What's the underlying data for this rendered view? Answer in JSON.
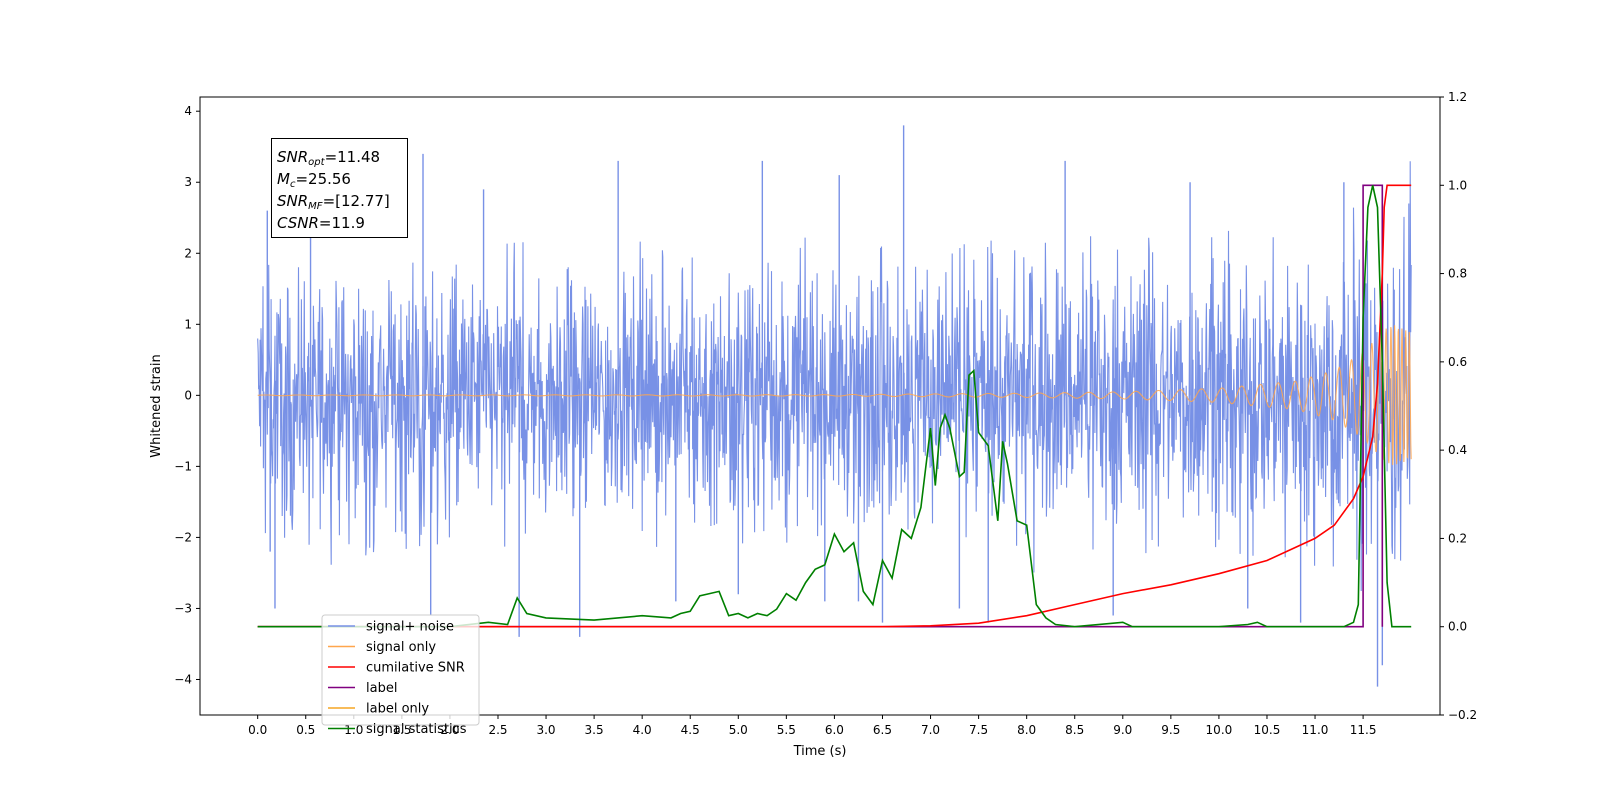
{
  "chart_data": {
    "type": "line",
    "xlabel": "Time (s)",
    "ylabel": "Whitened strain",
    "xlim": [
      -0.6,
      12.3
    ],
    "ylim": [
      -4.5,
      4.2
    ],
    "y2lim": [
      -0.2,
      1.2
    ],
    "grid": false,
    "legend_position": "lower-left",
    "x_ticks": [
      0.0,
      0.5,
      1.0,
      1.5,
      2.0,
      2.5,
      3.0,
      3.5,
      4.0,
      4.5,
      5.0,
      5.5,
      6.0,
      6.5,
      7.0,
      7.5,
      8.0,
      8.5,
      9.0,
      9.5,
      10.0,
      10.5,
      11.0,
      11.5
    ],
    "x_tick_labels": [
      "0.0",
      "0.5",
      "1.0",
      "1.5",
      "2.0",
      "2.5",
      "3.0",
      "3.5",
      "4.0",
      "4.5",
      "5.0",
      "5.5",
      "6.0",
      "6.5",
      "7.0",
      "7.5",
      "8.0",
      "8.5",
      "9.0",
      "9.5",
      "10.0",
      "10.5",
      "11.0",
      "11.5"
    ],
    "y_ticks": [
      -4,
      -3,
      -2,
      -1,
      0,
      1,
      2,
      3,
      4
    ],
    "y_tick_labels": [
      "−4",
      "−3",
      "−2",
      "−1",
      "0",
      "1",
      "2",
      "3",
      "4"
    ],
    "y2_ticks": [
      -0.2,
      0.0,
      0.2,
      0.4,
      0.6,
      0.8,
      1.0,
      1.2
    ],
    "y2_tick_labels": [
      "−0.2",
      "0.0",
      "0.2",
      "0.4",
      "0.6",
      "0.8",
      "1.0",
      "1.2"
    ],
    "series": [
      {
        "name": "signal+ noise",
        "axis": "left",
        "color": "#7891e6",
        "x_range": [
          0.0,
          12.0
        ],
        "values_envelope_upper": [
          1.6,
          1.5,
          1.5,
          1.6,
          1.5,
          1.6,
          1.5,
          1.6,
          1.5,
          1.6,
          1.5,
          1.6,
          1.5,
          1.6,
          1.5,
          1.6,
          1.6,
          1.6,
          1.6,
          1.7,
          1.7,
          1.8,
          1.9,
          2.0,
          2.4
        ],
        "values_envelope_lower": [
          -1.6,
          -1.5,
          -1.6,
          -1.5,
          -1.6,
          -1.5,
          -1.6,
          -1.5,
          -1.6,
          -1.5,
          -1.6,
          -1.5,
          -1.6,
          -1.5,
          -1.6,
          -1.5,
          -1.6,
          -1.6,
          -1.6,
          -1.7,
          -1.7,
          -1.8,
          -1.9,
          -2.0,
          -2.4
        ],
        "spikes": [
          {
            "x": 0.1,
            "y": 2.6
          },
          {
            "x": 0.13,
            "y": -2.2
          },
          {
            "x": 0.18,
            "y": -3.0
          },
          {
            "x": 0.55,
            "y": 2.3
          },
          {
            "x": 1.72,
            "y": 3.4
          },
          {
            "x": 1.8,
            "y": -3.1
          },
          {
            "x": 2.35,
            "y": 2.9
          },
          {
            "x": 2.72,
            "y": -3.4
          },
          {
            "x": 3.35,
            "y": -3.4
          },
          {
            "x": 3.75,
            "y": 3.3
          },
          {
            "x": 4.35,
            "y": -2.9
          },
          {
            "x": 5.0,
            "y": -2.8
          },
          {
            "x": 5.25,
            "y": 3.3
          },
          {
            "x": 5.9,
            "y": -2.9
          },
          {
            "x": 6.05,
            "y": 3.1
          },
          {
            "x": 6.25,
            "y": -2.9
          },
          {
            "x": 6.5,
            "y": -3.2
          },
          {
            "x": 6.72,
            "y": 3.8
          },
          {
            "x": 7.3,
            "y": -3.0
          },
          {
            "x": 7.6,
            "y": -3.2
          },
          {
            "x": 8.4,
            "y": 3.3
          },
          {
            "x": 8.9,
            "y": -3.1
          },
          {
            "x": 9.7,
            "y": 3.0
          },
          {
            "x": 10.3,
            "y": -3.0
          },
          {
            "x": 10.85,
            "y": -3.2
          },
          {
            "x": 11.3,
            "y": 3.0
          },
          {
            "x": 11.65,
            "y": -4.1
          },
          {
            "x": 11.7,
            "y": -3.8
          },
          {
            "x": 11.7,
            "y": 2.9
          }
        ]
      },
      {
        "name": "signal only",
        "axis": "left",
        "color": "#ffa64d",
        "x_range": [
          0.0,
          12.0
        ],
        "amplitude_points": [
          [
            0.0,
            0.005
          ],
          [
            6.0,
            0.01
          ],
          [
            8.0,
            0.03
          ],
          [
            9.0,
            0.05
          ],
          [
            10.0,
            0.1
          ],
          [
            10.8,
            0.2
          ],
          [
            11.2,
            0.35
          ],
          [
            11.5,
            0.6
          ],
          [
            11.7,
            0.9
          ],
          [
            11.8,
            1.0
          ],
          [
            12.0,
            0.9
          ]
        ]
      },
      {
        "name": "cumilative SNR",
        "axis": "right",
        "color": "#ff0000",
        "x": [
          0.0,
          5.0,
          6.0,
          6.5,
          7.0,
          7.5,
          8.0,
          8.5,
          9.0,
          9.5,
          10.0,
          10.5,
          11.0,
          11.2,
          11.4,
          11.5,
          11.6,
          11.65,
          11.7,
          11.72,
          11.75,
          12.0
        ],
        "values": [
          0.0,
          0.0,
          0.0,
          0.0,
          0.002,
          0.008,
          0.025,
          0.05,
          0.075,
          0.095,
          0.12,
          0.15,
          0.2,
          0.23,
          0.29,
          0.34,
          0.43,
          0.55,
          0.8,
          0.95,
          1.0,
          1.0
        ]
      },
      {
        "name": "label",
        "axis": "right",
        "color": "#800080",
        "x": [
          0.0,
          11.5,
          11.5,
          11.7,
          11.7
        ],
        "values": [
          0.0,
          0.0,
          1.0,
          1.0,
          0.0
        ]
      },
      {
        "name": "label only",
        "axis": "right",
        "color": "#f5a623",
        "x": [],
        "values": []
      },
      {
        "name": "signal statistics",
        "axis": "right",
        "color": "#008000",
        "x": [
          0.0,
          2.0,
          2.4,
          2.6,
          2.7,
          2.8,
          3.0,
          3.5,
          4.0,
          4.3,
          4.4,
          4.5,
          4.6,
          4.7,
          4.8,
          4.9,
          5.0,
          5.1,
          5.2,
          5.3,
          5.4,
          5.5,
          5.6,
          5.7,
          5.8,
          5.9,
          6.0,
          6.1,
          6.2,
          6.3,
          6.4,
          6.5,
          6.6,
          6.7,
          6.8,
          6.9,
          7.0,
          7.05,
          7.1,
          7.15,
          7.2,
          7.3,
          7.35,
          7.4,
          7.45,
          7.5,
          7.6,
          7.7,
          7.75,
          7.8,
          7.9,
          8.0,
          8.1,
          8.2,
          8.3,
          8.5,
          9.0,
          9.1,
          9.2,
          10.0,
          10.3,
          10.4,
          10.5,
          11.0,
          11.3,
          11.4,
          11.45,
          11.5,
          11.55,
          11.6,
          11.65,
          11.7,
          11.75,
          11.8,
          12.0
        ],
        "values": [
          0.0,
          0.0,
          0.01,
          0.005,
          0.065,
          0.03,
          0.02,
          0.015,
          0.025,
          0.02,
          0.03,
          0.035,
          0.07,
          0.075,
          0.08,
          0.025,
          0.03,
          0.02,
          0.03,
          0.025,
          0.04,
          0.075,
          0.06,
          0.1,
          0.13,
          0.14,
          0.21,
          0.17,
          0.19,
          0.08,
          0.05,
          0.15,
          0.11,
          0.22,
          0.2,
          0.27,
          0.45,
          0.32,
          0.45,
          0.48,
          0.45,
          0.34,
          0.35,
          0.57,
          0.58,
          0.44,
          0.41,
          0.24,
          0.42,
          0.37,
          0.24,
          0.23,
          0.05,
          0.02,
          0.005,
          0.0,
          0.01,
          0.0,
          0.0,
          0.0,
          0.005,
          0.01,
          0.0,
          0.0,
          0.0,
          0.01,
          0.05,
          0.7,
          0.95,
          1.0,
          0.95,
          0.6,
          0.1,
          0.0,
          0.0
        ]
      }
    ],
    "legend": [
      "signal+ noise",
      "signal only",
      "cumilative SNR",
      "label",
      "label only",
      "signal statistics"
    ]
  },
  "stats_box": {
    "snr_opt": {
      "sym": "SNR",
      "sub": "opt",
      "value": "=11.48"
    },
    "mc": {
      "sym": "M",
      "sub": "c",
      "value": "=25.56"
    },
    "snr_mf": {
      "sym": "SNR",
      "sub": "MF",
      "value": "=[12.77]"
    },
    "csnr": {
      "sym": "CSNR",
      "sub": "",
      "value": "=11.9"
    }
  }
}
